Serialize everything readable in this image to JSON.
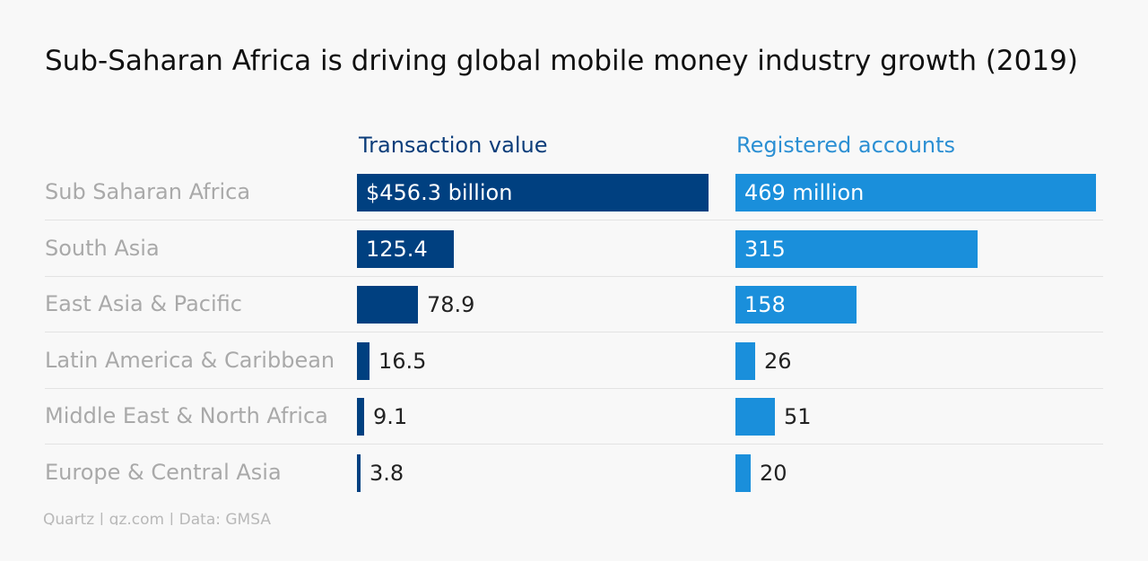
{
  "title": "Sub-Saharan Africa is driving global mobile money industry growth (2019)",
  "source": "Quartz | qz.com | Data: GMSA",
  "colors": {
    "transaction": "#004080",
    "accounts": "#1a8fdb",
    "transaction_header": "#0b3d7a",
    "accounts_header": "#2b8fd3",
    "label": "#a9a9a9"
  },
  "chart_data": [
    {
      "type": "bar",
      "orientation": "horizontal",
      "title": "Transaction value",
      "categories": [
        "Sub Saharan Africa",
        "South Asia",
        "East Asia & Pacific",
        "Latin America & Caribbean",
        "Middle East & North Africa",
        "Europe & Central Asia"
      ],
      "values": [
        456.3,
        125.4,
        78.9,
        16.5,
        9.1,
        3.8
      ],
      "labels": [
        "$456.3 billion",
        "125.4",
        "78.9",
        "16.5",
        "9.1",
        "3.8"
      ],
      "xlim": [
        0,
        456.3
      ],
      "grid": false,
      "color": "#004080"
    },
    {
      "type": "bar",
      "orientation": "horizontal",
      "title": "Registered accounts",
      "categories": [
        "Sub Saharan Africa",
        "South Asia",
        "East Asia & Pacific",
        "Latin America & Caribbean",
        "Middle East & North Africa",
        "Europe & Central Asia"
      ],
      "values": [
        469,
        315,
        158,
        26,
        51,
        20
      ],
      "labels": [
        "469 million",
        "315",
        "158",
        "26",
        "51",
        "20"
      ],
      "xlim": [
        0,
        469
      ],
      "grid": false,
      "color": "#1a8fdb"
    }
  ]
}
